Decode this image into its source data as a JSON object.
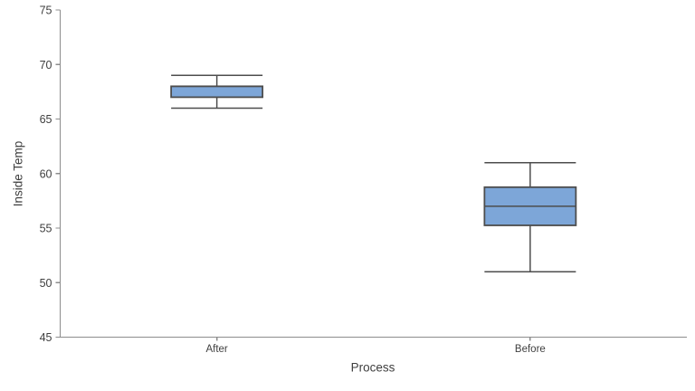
{
  "chart_data": {
    "type": "boxplot",
    "title": "",
    "xlabel": "Process",
    "ylabel": "Inside Temp",
    "categories": [
      "After",
      "Before"
    ],
    "series": [
      {
        "name": "After",
        "whisker_low": 66,
        "q1": 67,
        "median": 68,
        "q3": 68,
        "whisker_high": 69
      },
      {
        "name": "Before",
        "whisker_low": 51,
        "q1": 55.25,
        "median": 57,
        "q3": 58.75,
        "whisker_high": 61
      }
    ],
    "ylim": [
      45,
      75
    ],
    "yticks": [
      45,
      50,
      55,
      60,
      65,
      70,
      75
    ],
    "grid": false,
    "legend_position": "none",
    "colors": {
      "box_fill": "#7da6d8",
      "box_border": "#4d4d4d",
      "whisker": "#4d4d4d",
      "median": "#4d4d4d",
      "axis": "#8c8c8c",
      "text": "#3f3f3f",
      "background": "#ffffff"
    }
  }
}
